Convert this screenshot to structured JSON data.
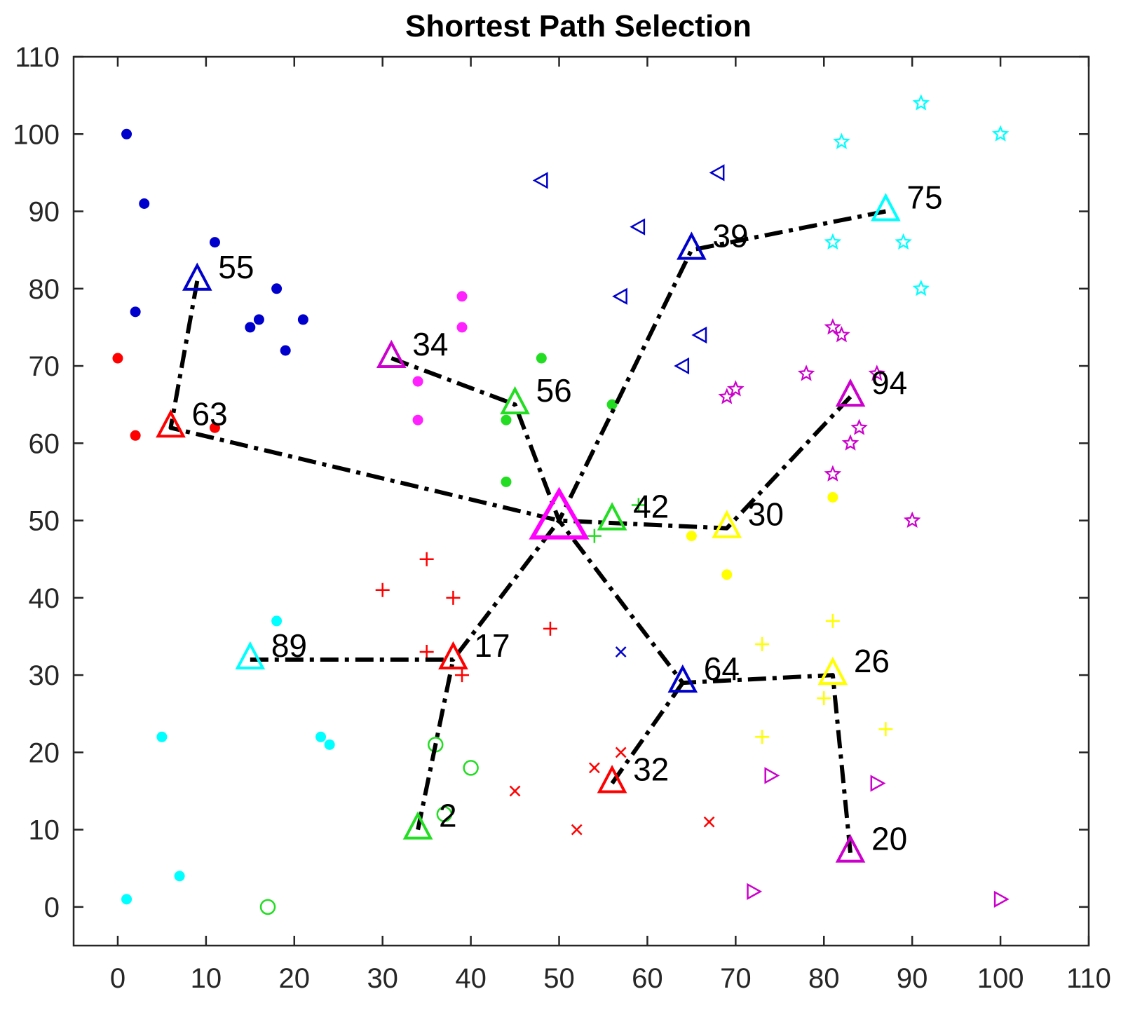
{
  "chart_data": {
    "type": "scatter",
    "title": "Shortest Path Selection",
    "xlabel": "",
    "ylabel": "",
    "xlim": [
      -5,
      110
    ],
    "ylim": [
      -5,
      110
    ],
    "xticks": [
      "0",
      "10",
      "20",
      "30",
      "40",
      "50",
      "60",
      "70",
      "80",
      "90",
      "100",
      "110"
    ],
    "yticks": [
      "0",
      "10",
      "20",
      "30",
      "40",
      "50",
      "60",
      "70",
      "80",
      "90",
      "100",
      "110"
    ],
    "grid": false,
    "legend": "none",
    "clusters": [
      {
        "marker": "dot",
        "color": "#0000cc",
        "points": [
          [
            1,
            100
          ],
          [
            3,
            91
          ],
          [
            11,
            86
          ],
          [
            18,
            80
          ],
          [
            2,
            77
          ],
          [
            15,
            75
          ],
          [
            16,
            76
          ],
          [
            21,
            76
          ],
          [
            19,
            72
          ]
        ]
      },
      {
        "marker": "dot",
        "color": "#ff0000",
        "points": [
          [
            0,
            71
          ],
          [
            2,
            61
          ],
          [
            11,
            62
          ]
        ]
      },
      {
        "marker": "dot",
        "color": "#ff22ff",
        "points": [
          [
            39,
            79
          ],
          [
            39,
            75
          ],
          [
            34,
            68
          ],
          [
            34,
            63
          ]
        ]
      },
      {
        "marker": "dot",
        "color": "#22dd22",
        "points": [
          [
            48,
            71
          ],
          [
            44,
            63
          ],
          [
            44,
            55
          ],
          [
            56,
            65
          ]
        ]
      },
      {
        "marker": "dot",
        "color": "#ffff00",
        "points": [
          [
            81,
            53
          ],
          [
            65,
            48
          ],
          [
            69,
            43
          ]
        ]
      },
      {
        "marker": "dot",
        "color": "#00ffff",
        "points": [
          [
            18,
            37
          ],
          [
            5,
            22
          ],
          [
            23,
            22
          ],
          [
            24,
            21
          ],
          [
            7,
            4
          ],
          [
            1,
            1
          ]
        ]
      },
      {
        "marker": "triangle-left",
        "color": "#0000cc",
        "points": [
          [
            48,
            94
          ],
          [
            68,
            95
          ],
          [
            59,
            88
          ],
          [
            57,
            79
          ],
          [
            66,
            74
          ],
          [
            64,
            70
          ]
        ]
      },
      {
        "marker": "star",
        "color": "#00ffff",
        "points": [
          [
            91,
            104
          ],
          [
            82,
            99
          ],
          [
            100,
            100
          ],
          [
            81,
            86
          ],
          [
            89,
            86
          ],
          [
            91,
            80
          ]
        ]
      },
      {
        "marker": "star",
        "color": "#cc00cc",
        "points": [
          [
            81,
            75
          ],
          [
            82,
            74
          ],
          [
            78,
            69
          ],
          [
            70,
            67
          ],
          [
            69,
            66
          ],
          [
            86,
            69
          ],
          [
            84,
            62
          ],
          [
            83,
            60
          ],
          [
            81,
            56
          ],
          [
            90,
            50
          ]
        ]
      },
      {
        "marker": "plus",
        "color": "#ff0000",
        "points": [
          [
            35,
            45
          ],
          [
            30,
            41
          ],
          [
            38,
            40
          ],
          [
            49,
            36
          ],
          [
            35,
            33
          ],
          [
            39,
            30
          ]
        ]
      },
      {
        "marker": "plus",
        "color": "#22dd22",
        "points": [
          [
            59,
            52
          ],
          [
            54,
            48
          ]
        ]
      },
      {
        "marker": "plus",
        "color": "#ffff00",
        "points": [
          [
            81,
            37
          ],
          [
            73,
            34
          ],
          [
            80,
            27
          ],
          [
            73,
            22
          ],
          [
            87,
            23
          ]
        ]
      },
      {
        "marker": "x",
        "color": "#0000cc",
        "points": [
          [
            57,
            33
          ]
        ]
      },
      {
        "marker": "x",
        "color": "#ff0000",
        "points": [
          [
            57,
            20
          ],
          [
            54,
            18
          ],
          [
            45,
            15
          ],
          [
            52,
            10
          ],
          [
            67,
            11
          ]
        ]
      },
      {
        "marker": "circle",
        "color": "#22dd22",
        "points": [
          [
            36,
            21
          ],
          [
            40,
            18
          ],
          [
            37,
            12
          ],
          [
            17,
            0
          ]
        ]
      },
      {
        "marker": "triangle-right",
        "color": "#cc00cc",
        "points": [
          [
            74,
            17
          ],
          [
            86,
            16
          ],
          [
            72,
            2
          ],
          [
            100,
            1
          ]
        ]
      }
    ],
    "heads": [
      {
        "id": "55",
        "x": 9,
        "y": 81,
        "color": "#0000cc"
      },
      {
        "id": "63",
        "x": 6,
        "y": 62,
        "color": "#ff0000"
      },
      {
        "id": "34",
        "x": 31,
        "y": 71,
        "color": "#cc00cc"
      },
      {
        "id": "56",
        "x": 45,
        "y": 65,
        "color": "#22dd22"
      },
      {
        "id": "39",
        "x": 65,
        "y": 85,
        "color": "#0000cc"
      },
      {
        "id": "75",
        "x": 87,
        "y": 90,
        "color": "#00ffff"
      },
      {
        "id": "94",
        "x": 83,
        "y": 66,
        "color": "#cc00cc"
      },
      {
        "id": "42",
        "x": 56,
        "y": 50,
        "color": "#22dd22"
      },
      {
        "id": "30",
        "x": 69,
        "y": 49,
        "color": "#ffff00"
      },
      {
        "id": "89",
        "x": 15,
        "y": 32,
        "color": "#00ffff"
      },
      {
        "id": "17",
        "x": 38,
        "y": 32,
        "color": "#ff0000"
      },
      {
        "id": "64",
        "x": 64,
        "y": 29,
        "color": "#0000cc"
      },
      {
        "id": "26",
        "x": 81,
        "y": 30,
        "color": "#ffff00"
      },
      {
        "id": "32",
        "x": 56,
        "y": 16,
        "color": "#ff0000"
      },
      {
        "id": "2",
        "x": 34,
        "y": 10,
        "color": "#22dd22"
      },
      {
        "id": "20",
        "x": 83,
        "y": 7,
        "color": "#cc00cc"
      }
    ],
    "sink": {
      "x": 50,
      "y": 50,
      "color": "#ff00ff"
    },
    "paths": [
      [
        [
          9,
          81
        ],
        [
          6,
          62
        ],
        [
          50,
          50
        ]
      ],
      [
        [
          31,
          71
        ],
        [
          45,
          65
        ],
        [
          50,
          50
        ]
      ],
      [
        [
          87,
          90
        ],
        [
          65,
          85
        ],
        [
          50,
          50
        ]
      ],
      [
        [
          83,
          66
        ],
        [
          69,
          49
        ],
        [
          50,
          50
        ]
      ],
      [
        [
          15,
          32
        ],
        [
          38,
          32
        ],
        [
          50,
          50
        ]
      ],
      [
        [
          34,
          10
        ],
        [
          38,
          32
        ]
      ],
      [
        [
          83,
          7
        ],
        [
          81,
          30
        ],
        [
          64,
          29
        ],
        [
          50,
          50
        ]
      ],
      [
        [
          56,
          16
        ],
        [
          64,
          29
        ]
      ]
    ]
  }
}
